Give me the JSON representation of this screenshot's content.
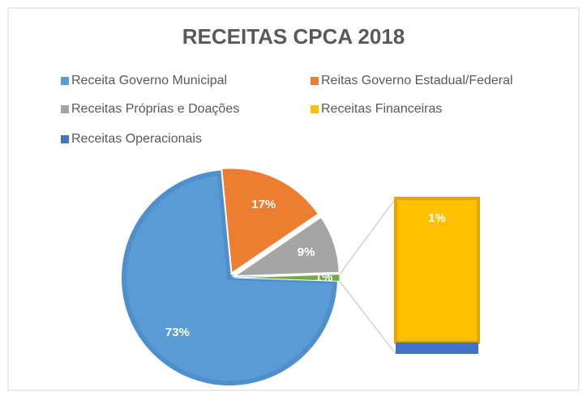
{
  "chart_data": {
    "type": "pie",
    "title": "RECEITAS CPCA 2018",
    "categories": [
      "Receita Governo Municipal",
      "Reitas Governo Estadual/Federal",
      "Receitas Próprias e Doações",
      "Receitas Financeiras",
      "Receitas Operacionais"
    ],
    "values": [
      73,
      17,
      9,
      1,
      0.08
    ],
    "value_labels": [
      "73%",
      "17%",
      "9%",
      "1%",
      null
    ],
    "colors": [
      "#5b9bd5",
      "#ed7d31",
      "#a5a5a5",
      "#ffc000",
      "#4472c4"
    ],
    "split_count": 2,
    "other_color": "#70ad47",
    "other_label": "1%"
  }
}
